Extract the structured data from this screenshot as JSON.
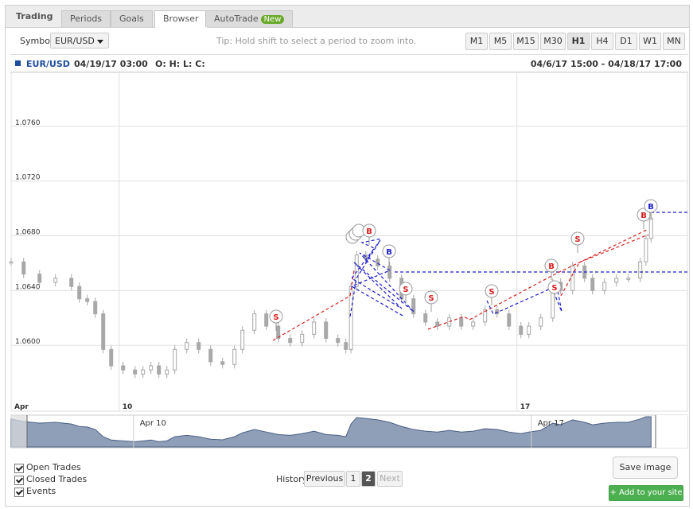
{
  "tabs": [
    "Trading",
    "Periods",
    "Goals",
    "Browser",
    "AutoTrade"
  ],
  "tab_badge": "New",
  "toolbar": {
    "symbol_label": "Symbol",
    "symbol": "EUR/USD",
    "tip": "Tip: Hold shift to select a period to zoom into.",
    "periods": [
      "M1",
      "M5",
      "M15",
      "M30",
      "H1",
      "H4",
      "D1",
      "W1",
      "MN"
    ]
  },
  "chart_header": {
    "symbol": "EUR/USD",
    "datetime": "04/19/17 03:00",
    "ohlc": "O: H: L: C:",
    "range": "04/6/17 15:00 - 04/18/17 17:00"
  },
  "chart_data": {
    "type": "candlestick",
    "color": "#a8a8a8",
    "x": [
      8.1,
      8.32,
      8.6,
      8.88,
      9.16,
      9.3,
      9.44,
      9.58,
      9.72,
      9.86,
      10.07,
      10.28,
      10.42,
      10.56,
      10.7,
      10.84,
      10.98,
      11.19,
      11.4,
      11.61,
      11.82,
      12.03,
      12.17,
      12.38,
      12.59,
      12.8,
      13.01,
      13.22,
      13.43,
      13.64,
      13.85,
      13.99,
      14.08,
      14.18,
      14.34,
      14.55,
      14.76,
      14.97,
      15.18,
      15.39,
      15.6,
      15.81,
      16.02,
      16.23,
      16.44,
      16.65,
      16.86,
      17.07,
      17.21,
      17.42,
      17.63,
      17.77,
      17.98,
      18.19,
      18.33,
      18.54,
      18.75,
      18.96,
      19.17,
      19.27,
      19.36
    ],
    "values": [
      1.0661,
      1.0652,
      1.0646,
      1.0649,
      1.0643,
      1.0634,
      1.0632,
      1.0623,
      1.0597,
      1.0585,
      1.0582,
      1.0579,
      1.0582,
      1.0585,
      1.0579,
      1.0582,
      1.0597,
      1.0602,
      1.0597,
      1.0588,
      1.0586,
      1.0597,
      1.0611,
      1.0623,
      1.0614,
      1.0605,
      1.0602,
      1.0608,
      1.0617,
      1.0605,
      1.0602,
      1.0597,
      1.0643,
      1.0666,
      1.0663,
      1.0658,
      1.0649,
      1.0634,
      1.0623,
      1.0617,
      1.0614,
      1.062,
      1.0614,
      1.0617,
      1.0626,
      1.0623,
      1.0614,
      1.0608,
      1.0614,
      1.062,
      1.0646,
      1.064,
      1.0658,
      1.0649,
      1.064,
      1.0646,
      1.0649,
      1.0649,
      1.0661,
      1.0678,
      1.0693
    ],
    "xlim": [
      8.1,
      20.0
    ],
    "xticks": [
      {
        "value": 8.1,
        "label": "Apr"
      },
      10,
      17
    ],
    "ylim": [
      1.056,
      1.08
    ],
    "yticks": [
      {
        "value": 1.06,
        "label": "1.0600"
      },
      {
        "value": 1.064,
        "label": "1.0640"
      },
      {
        "value": 1.068,
        "label": "1.0680"
      },
      {
        "value": 1.072,
        "label": "1.0720"
      },
      {
        "value": 1.076,
        "label": "1.0760"
      }
    ],
    "grid": true
  },
  "markers": [
    "S",
    "B",
    "B",
    "S",
    "S",
    "S",
    "B",
    "S",
    "S",
    "B",
    "B"
  ],
  "navigator": {
    "labels": [
      "Apr 10",
      "Apr 17"
    ]
  },
  "footer": {
    "checkboxes": [
      "Open Trades",
      "Closed Trades",
      "Events"
    ],
    "history_label": "History",
    "pages": [
      "Previous",
      "1",
      "2",
      "Next"
    ],
    "save": "Save image",
    "add": "+ Add to your site"
  }
}
